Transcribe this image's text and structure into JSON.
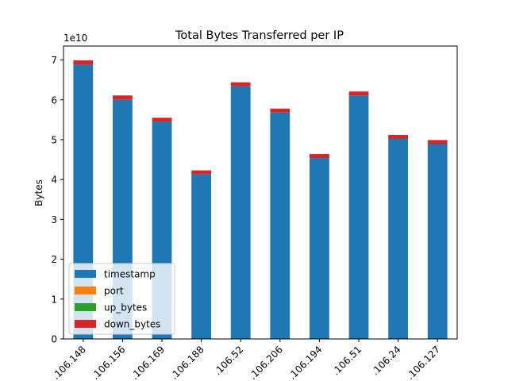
{
  "chart_data": {
    "type": "bar",
    "stacked": true,
    "title": "Total Bytes Transferred per IP",
    "xlabel": "",
    "ylabel": "Bytes",
    "y_offset_text": "1e10",
    "y_scale": 10000000000,
    "ylim": [
      0,
      73500000000
    ],
    "yticks": [
      0,
      1,
      2,
      3,
      4,
      5,
      6,
      7
    ],
    "grid": false,
    "legend_position": "lower-left",
    "categories": [
      ".106.148",
      ".106.156",
      ".106.169",
      ".106.188",
      ".106.52",
      ".106.206",
      ".106.194",
      ".106.51",
      ".106.24",
      ".106.127"
    ],
    "series": [
      {
        "name": "timestamp",
        "color": "#1f77b4",
        "values": [
          68800000000,
          60000000000,
          54500000000,
          41300000000,
          63400000000,
          56800000000,
          45400000000,
          61100000000,
          50200000000,
          48900000000
        ]
      },
      {
        "name": "port",
        "color": "#ff7f0e",
        "values": [
          0,
          0,
          0,
          0,
          0,
          0,
          0,
          0,
          0,
          0
        ]
      },
      {
        "name": "up_bytes",
        "color": "#2ca02c",
        "values": [
          0,
          0,
          0,
          0,
          0,
          0,
          0,
          0,
          0,
          0
        ]
      },
      {
        "name": "down_bytes",
        "color": "#d62728",
        "values": [
          1100000000,
          1100000000,
          1000000000,
          1000000000,
          1000000000,
          1000000000,
          1000000000,
          1000000000,
          1000000000,
          1000000000
        ]
      }
    ]
  }
}
